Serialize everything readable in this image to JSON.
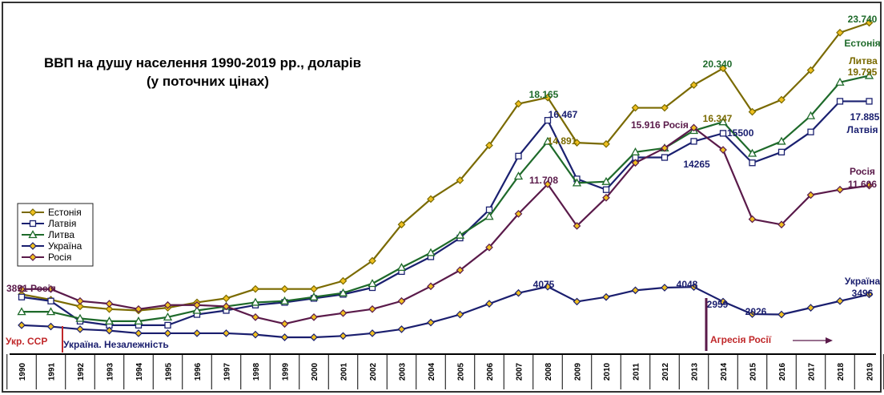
{
  "chart_data": {
    "type": "line",
    "title": "ВВП на душу населення 1990-2019 рр., доларів",
    "subtitle": "(у поточних цінах)",
    "xlabel": "",
    "ylabel": "",
    "ylim": [
      0,
      25000
    ],
    "grid": false,
    "legend_placement": "left",
    "categories": [
      "1990",
      "1991",
      "1992",
      "1993",
      "1994",
      "1995",
      "1996",
      "1997",
      "1998",
      "1999",
      "2000",
      "2001",
      "2002",
      "2003",
      "2004",
      "2005",
      "2006",
      "2007",
      "2008",
      "2009",
      "2010",
      "2011",
      "2012",
      "2013",
      "2014",
      "2015",
      "2016",
      "2017",
      "2018",
      "2019"
    ],
    "series": [
      {
        "name": "Естонія",
        "color": "#7a6a00",
        "marker": "diamond",
        "values": [
          3500,
          3100,
          2600,
          2400,
          2300,
          2500,
          2900,
          3200,
          3900,
          3900,
          3900,
          4500,
          6000,
          8700,
          10600,
          12000,
          14600,
          17700,
          18165,
          14800,
          14700,
          17400,
          17400,
          19100,
          20340,
          17100,
          18000,
          20200,
          23000,
          23740
        ]
      },
      {
        "name": "Латвія",
        "color": "#1a2070",
        "marker": "square",
        "values": [
          3300,
          3000,
          1500,
          1200,
          1200,
          1200,
          2000,
          2300,
          2700,
          2900,
          3200,
          3500,
          4000,
          5200,
          6300,
          7700,
          9800,
          13800,
          16467,
          12100,
          11300,
          13700,
          13700,
          14900,
          15500,
          13300,
          14100,
          15600,
          17885,
          17885
        ]
      },
      {
        "name": "Литва",
        "color": "#1e6a2a",
        "marker": "triangle",
        "values": [
          2200,
          2200,
          1700,
          1500,
          1500,
          1800,
          2300,
          2600,
          2900,
          3000,
          3300,
          3600,
          4300,
          5500,
          6600,
          7900,
          9300,
          12300,
          14891,
          11800,
          11900,
          14100,
          14400,
          15700,
          16347,
          14000,
          14900,
          16800,
          19300,
          19795
        ]
      },
      {
        "name": "Україна",
        "color": "#1a1e6e",
        "marker": "diamond",
        "values": [
          1200,
          1100,
          900,
          800,
          600,
          600,
          600,
          600,
          500,
          300,
          300,
          400,
          600,
          900,
          1400,
          2000,
          2800,
          3600,
          4075,
          2959,
          3300,
          3800,
          4000,
          4048,
          2959,
          2026,
          2000,
          2500,
          3000,
          3496
        ]
      },
      {
        "name": "Росія",
        "color": "#5a1a4a",
        "marker": "diamond",
        "values": [
          3891,
          3891,
          3000,
          2800,
          2400,
          2700,
          2700,
          2600,
          1800,
          1300,
          1800,
          2100,
          2400,
          3000,
          4100,
          5300,
          7000,
          9500,
          11708,
          8600,
          10700,
          13300,
          14400,
          15916,
          14265,
          9100,
          8700,
          10900,
          11300,
          11606
        ]
      }
    ],
    "annotations": [
      {
        "text": "3891 Росія",
        "series": "Росія",
        "x": "1990",
        "color": "#5a1a4a"
      },
      {
        "text": "18.165",
        "series": "Естонія",
        "x": "2008",
        "color": "#1e6a2a"
      },
      {
        "text": "16.467",
        "series": "Латвія",
        "x": "2008",
        "color": "#1a2070"
      },
      {
        "text": "14.891",
        "series": "Литва",
        "x": "2009",
        "color": "#7a6a00"
      },
      {
        "text": "11.708",
        "series": "Росія",
        "x": "2008",
        "color": "#5a1a4a"
      },
      {
        "text": "4075",
        "series": "Україна",
        "x": "2008",
        "color": "#1a1e6e"
      },
      {
        "text": "20.340",
        "series": "Естонія",
        "x": "2014",
        "color": "#1e6a2a"
      },
      {
        "text": "15.916 Росія",
        "series": "Росія",
        "x": "2013",
        "color": "#5a1a4a"
      },
      {
        "text": "16.347",
        "series": "Литва",
        "x": "2014",
        "color": "#7a6a00"
      },
      {
        "text": "15500",
        "series": "Латвія",
        "x": "2014",
        "color": "#1a2070"
      },
      {
        "text": "14265",
        "series": "Росія",
        "x": "2014",
        "color": "#1a1e6e"
      },
      {
        "text": "4048",
        "series": "Україна",
        "x": "2013",
        "color": "#1a1e6e"
      },
      {
        "text": "2959",
        "series": "Україна",
        "x": "2014",
        "color": "#1a1e6e"
      },
      {
        "text": "2026",
        "series": "Україна",
        "x": "2015",
        "color": "#1a1e6e"
      },
      {
        "text": "23.740",
        "series": "Естонія",
        "x": "2019",
        "color": "#1e6a2a"
      },
      {
        "text": "Естонія",
        "series": "Естонія",
        "x": "2019",
        "color": "#1e6a2a"
      },
      {
        "text": "Литва",
        "series": "Литва",
        "x": "2019",
        "color": "#7a6a00"
      },
      {
        "text": "19.795",
        "series": "Литва",
        "x": "2019",
        "color": "#7a6a00"
      },
      {
        "text": "17.885",
        "series": "Латвія",
        "x": "2019",
        "color": "#1a2070"
      },
      {
        "text": "Латвія",
        "series": "Латвія",
        "x": "2019",
        "color": "#1a2070"
      },
      {
        "text": "Росія",
        "series": "Росія",
        "x": "2019",
        "color": "#5a1a4a"
      },
      {
        "text": "11.606",
        "series": "Росія",
        "x": "2019",
        "color": "#5a1a4a"
      },
      {
        "text": "Україна",
        "series": "Україна",
        "x": "2019",
        "color": "#1a1e6e"
      },
      {
        "text": "3496",
        "series": "Україна",
        "x": "2019",
        "color": "#1a1e6e"
      }
    ],
    "events": [
      {
        "text": "Укр. ССР",
        "color": "#c0282a"
      },
      {
        "text": "Україна. Незалежність",
        "color": "#1a1e6e"
      },
      {
        "text": "Агресія Росії",
        "color": "#c0282a"
      }
    ]
  }
}
